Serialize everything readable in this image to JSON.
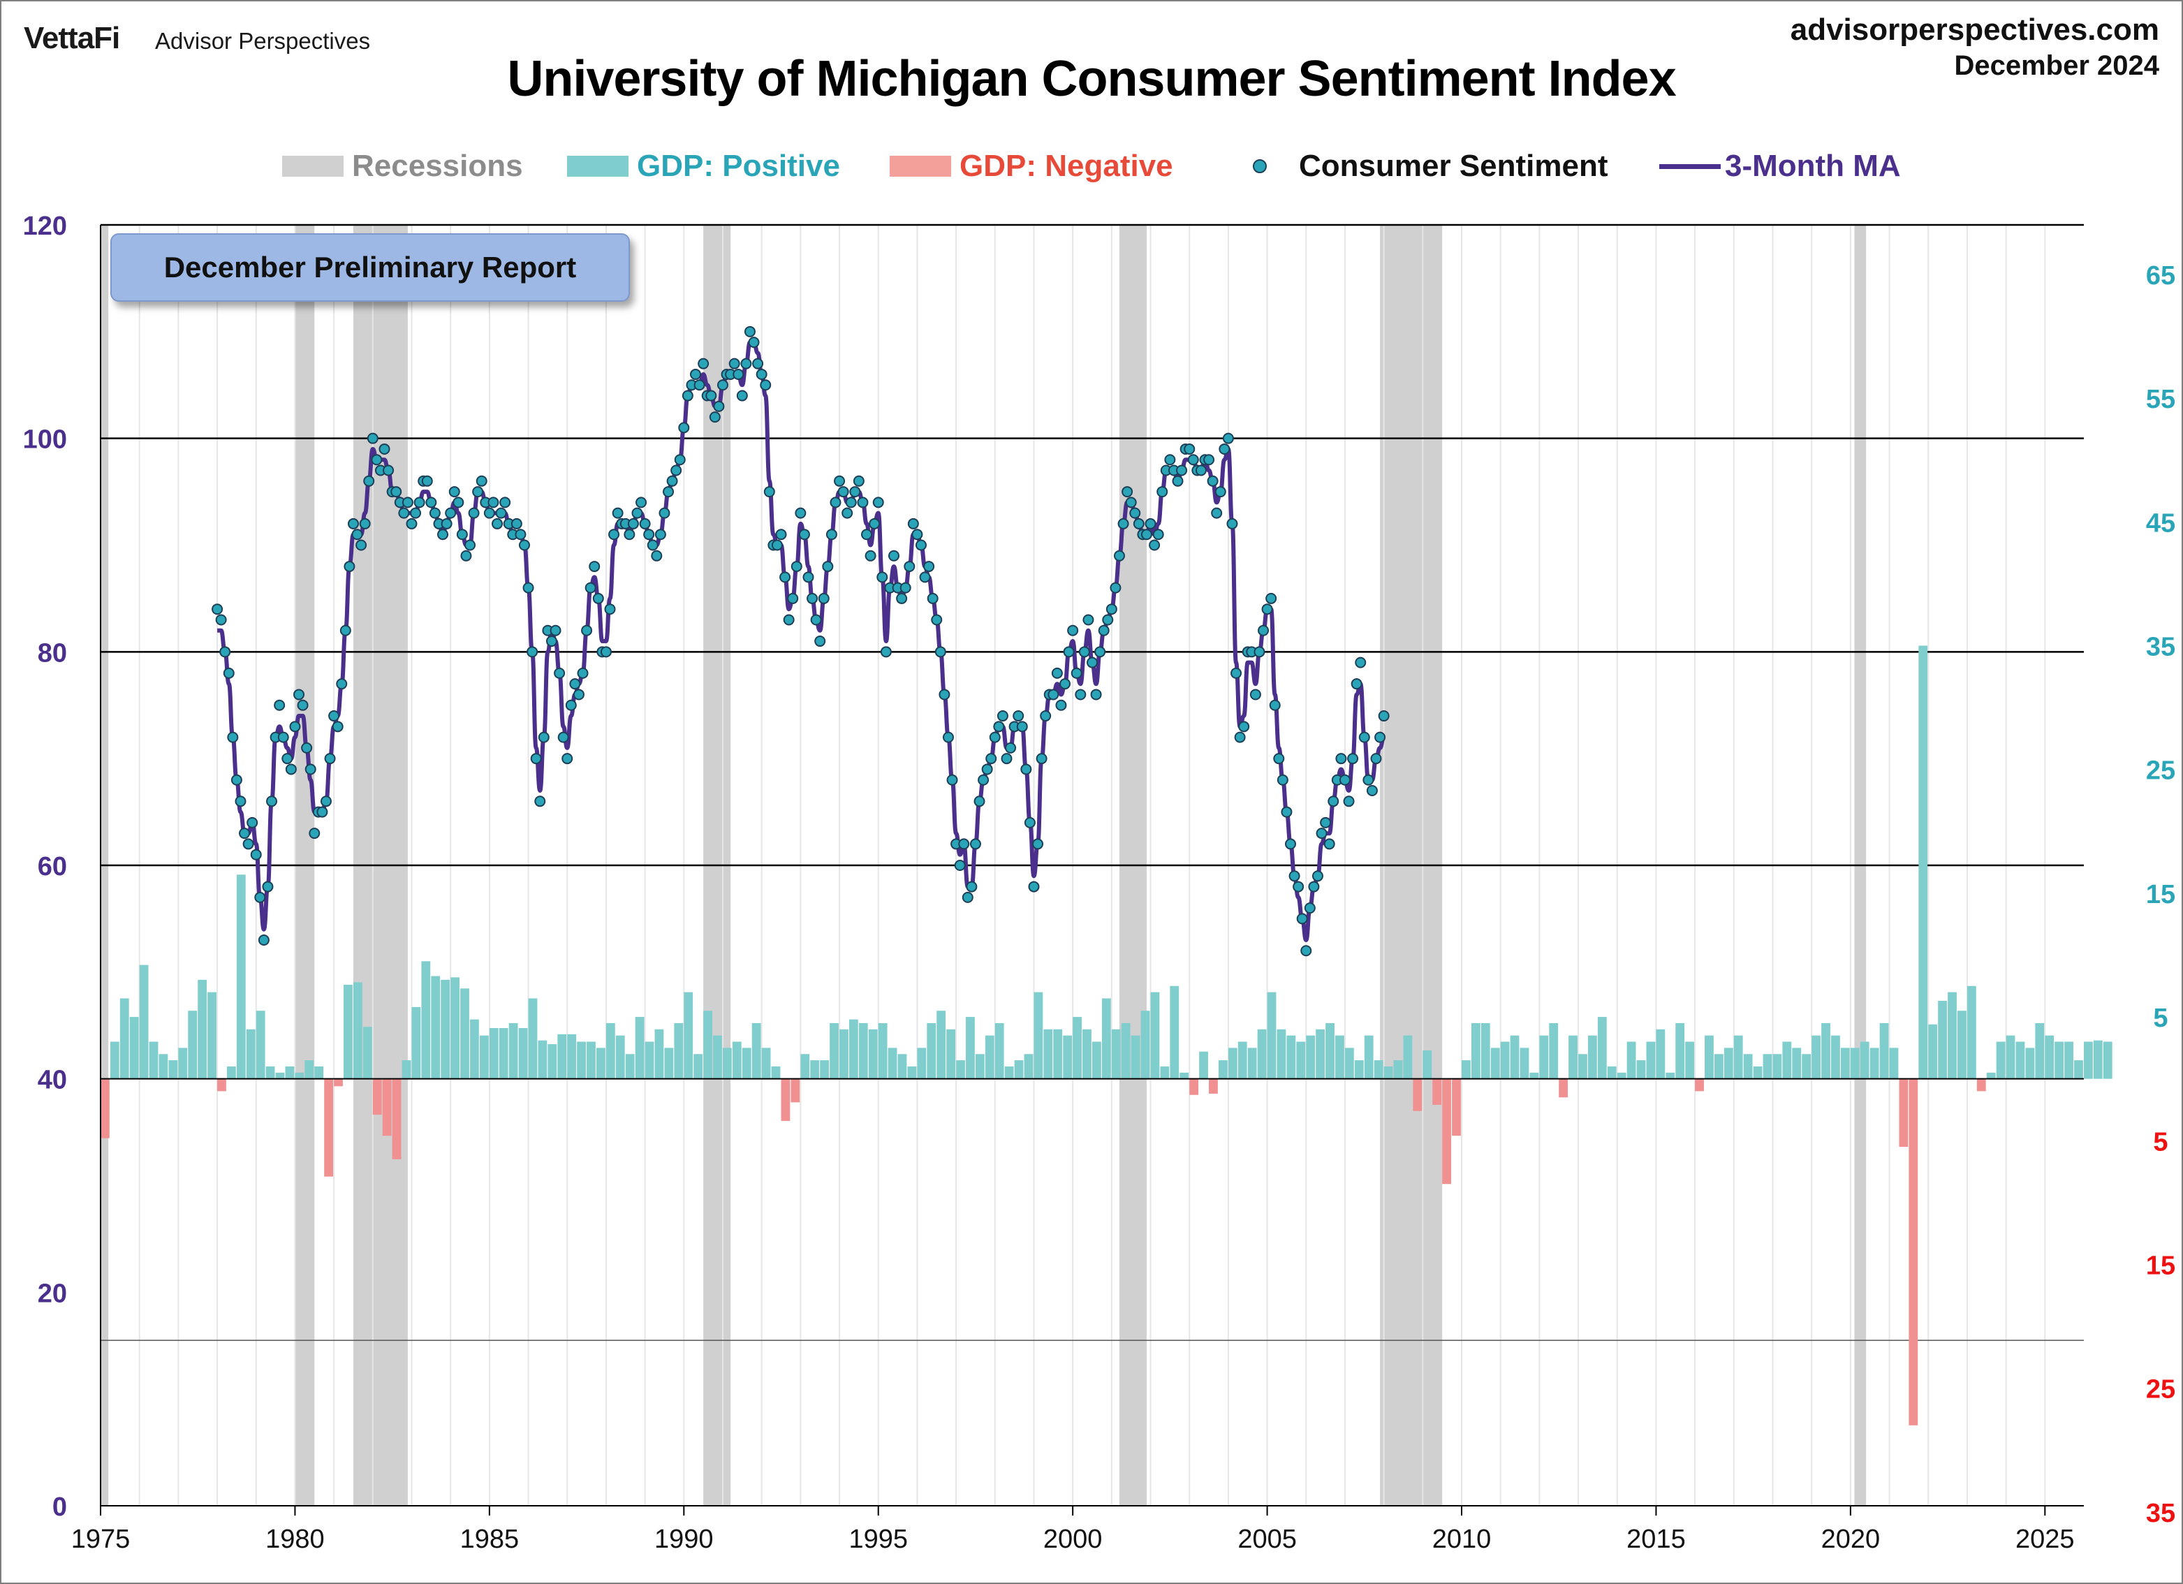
{
  "header": {
    "brand_left": "VettaFi",
    "brand_sub": "Advisor Perspectives",
    "site": "advisorperspectives.com",
    "date": "December 2024",
    "title": "University of Michigan Consumer Sentiment Index"
  },
  "legend": {
    "recessions": "Recessions",
    "gdp_positive": "GDP: Positive",
    "gdp_negative": "GDP: Negative",
    "sentiment": "Consumer Sentiment",
    "ma": "3-Month MA"
  },
  "annotation": "December Preliminary Report",
  "colors": {
    "recession": "#d0d0d0",
    "gdp_positive": "#7fcdcd",
    "gdp_negative": "#f09090",
    "dot_fill": "#2aa5b8",
    "dot_stroke": "#1d3f58",
    "ma_line": "#4b2f8d",
    "left_axis": "#4b2f8d",
    "right_axis_pos": "#2aa5b8",
    "right_axis_neg": "#ee1111"
  },
  "chart_data": {
    "type": "line",
    "x_axis": {
      "ticks": [
        1975,
        1980,
        1985,
        1990,
        1995,
        2000,
        2005,
        2010,
        2015,
        2020,
        2025
      ],
      "range": [
        1975,
        2026
      ]
    },
    "y_left": {
      "ticks": [
        0,
        20,
        40,
        60,
        80,
        100,
        120
      ],
      "range": [
        0,
        120
      ],
      "gridlines": [
        60,
        80,
        100,
        120
      ]
    },
    "y_right": {
      "ticks": [
        {
          "label": "65",
          "value": 65,
          "sign": "pos"
        },
        {
          "label": "55",
          "value": 55,
          "sign": "pos"
        },
        {
          "label": "45",
          "value": 45,
          "sign": "pos"
        },
        {
          "label": "35",
          "value": 35,
          "sign": "pos"
        },
        {
          "label": "25",
          "value": 25,
          "sign": "pos"
        },
        {
          "label": "15",
          "value": 15,
          "sign": "pos"
        },
        {
          "label": "5",
          "value": 5,
          "sign": "pos"
        },
        {
          "label": "5",
          "value": -5,
          "sign": "neg"
        },
        {
          "label": "15",
          "value": -15,
          "sign": "neg"
        },
        {
          "label": "25",
          "value": -25,
          "sign": "neg"
        },
        {
          "label": "35",
          "value": -35,
          "sign": "neg"
        }
      ],
      "range": [
        -35,
        70
      ]
    },
    "recessions": [
      [
        1975.0,
        1975.2
      ],
      [
        1980.0,
        1980.5
      ],
      [
        1981.5,
        1982.9
      ],
      [
        1990.5,
        1991.2
      ],
      [
        2001.2,
        2001.9
      ],
      [
        2007.9,
        2009.5
      ],
      [
        2020.1,
        2020.4
      ]
    ],
    "series": [
      {
        "name": "Consumer Sentiment",
        "kind": "points",
        "x_start": 1978.0,
        "step": 0.1,
        "values": [
          84.0,
          83.0,
          80.0,
          78.0,
          72.0,
          68.0,
          66.0,
          63.0,
          62.0,
          64.0,
          61.0,
          57.0,
          53.0,
          58.0,
          66.0,
          72.0,
          75.0,
          72.0,
          70.0,
          69.0,
          73.0,
          76.0,
          75.0,
          71.0,
          69.0,
          63.0,
          65.0,
          65.0,
          66.0,
          70.0,
          74.0,
          73.0,
          77.0,
          82.0,
          88.0,
          92.0,
          91.0,
          90.0,
          92.0,
          96.0,
          100.0,
          98.0,
          97.0,
          99.0,
          97.0,
          95.0,
          95.0,
          94.0,
          93.0,
          94.0,
          92.0,
          93.0,
          94.0,
          96.0,
          96.0,
          94.0,
          93.0,
          92.0,
          91.0,
          92.0,
          93.0,
          95.0,
          94.0,
          91.0,
          89.0,
          90.0,
          93.0,
          95.0,
          96.0,
          94.0,
          93.0,
          94.0,
          92.0,
          93.0,
          94.0,
          92.0,
          91.0,
          92.0,
          91.0,
          90.0,
          86.0,
          80.0,
          70.0,
          66.0,
          72.0,
          82.0,
          81.0,
          82.0,
          78.0,
          72.0,
          70.0,
          75.0,
          77.0,
          76.0,
          78.0,
          82.0,
          86.0,
          88.0,
          85.0,
          80.0,
          80.0,
          84.0,
          91.0,
          93.0,
          92.0,
          92.0,
          91.0,
          92.0,
          93.0,
          94.0,
          92.0,
          91.0,
          90.0,
          89.0,
          91.0,
          93.0,
          95.0,
          96.0,
          97.0,
          98.0,
          101.0,
          104.0,
          105.0,
          106.0,
          105.0,
          107.0,
          104.0,
          104.0,
          102.0,
          103.0,
          105.0,
          106.0,
          106.0,
          107.0,
          106.0,
          104.0,
          107.0,
          110.0,
          109.0,
          107.0,
          106.0,
          105.0,
          95.0,
          90.0,
          90.0,
          91.0,
          87.0,
          83.0,
          85.0,
          88.0,
          93.0,
          91.0,
          87.0,
          85.0,
          83.0,
          81.0,
          85.0,
          88.0,
          91.0,
          94.0,
          96.0,
          95.0,
          93.0,
          94.0,
          95.0,
          96.0,
          94.0,
          91.0,
          89.0,
          92.0,
          94.0,
          87.0,
          80.0,
          86.0,
          89.0,
          86.0,
          85.0,
          86.0,
          88.0,
          92.0,
          91.0,
          90.0,
          87.0,
          88.0,
          85.0,
          83.0,
          80.0,
          76.0,
          72.0,
          68.0,
          62.0,
          60.0,
          62.0,
          57.0,
          58.0,
          62.0,
          66.0,
          68.0,
          69.0,
          70.0,
          72.0,
          73.0,
          74.0,
          70.0,
          71.0,
          73.0,
          74.0,
          73.0,
          69.0,
          64.0,
          58.0,
          62.0,
          70.0,
          74.0,
          76.0,
          76.0,
          78.0,
          75.0,
          77.0,
          80.0,
          82.0,
          78.0,
          76.0,
          80.0,
          83.0,
          79.0,
          76.0,
          80.0,
          82.0,
          83.0,
          84.0,
          86.0,
          89.0,
          92.0,
          95.0,
          94.0,
          93.0,
          92.0,
          91.0,
          91.0,
          92.0,
          90.0,
          91.0,
          95.0,
          97.0,
          98.0,
          97.0,
          96.0,
          97.0,
          99.0,
          99.0,
          98.0,
          97.0,
          97.0,
          98.0,
          98.0,
          96.0,
          93.0,
          95.0,
          99.0,
          100.0,
          92.0,
          78.0,
          72.0,
          73.0,
          80.0,
          80.0,
          76.0,
          80.0,
          82.0,
          84.0,
          85.0,
          75.0,
          70.0,
          68.0,
          65.0,
          62.0,
          59.0,
          58.0,
          55.0,
          52.0,
          56.0,
          58.0,
          59.0,
          63.0,
          64.0,
          62.0,
          66.0,
          68.0,
          70.0,
          68.0,
          66.0,
          70.0,
          77.0,
          79.0,
          72.0,
          68.0,
          67.0,
          70.0,
          72.0,
          74.0
        ]
      },
      {
        "name": "3-Month MA",
        "kind": "line",
        "x_start": 1978.0,
        "step": 0.1,
        "values": [
          82.0,
          82.0,
          80.0,
          77.0,
          72.0,
          68.0,
          65.0,
          63.0,
          63.0,
          64.0,
          62.0,
          57.0,
          54.0,
          58.0,
          66.0,
          72.0,
          73.0,
          72.0,
          71.0,
          70.0,
          72.0,
          74.0,
          74.0,
          71.0,
          68.0,
          65.0,
          65.0,
          65.0,
          66.0,
          70.0,
          73.0,
          74.0,
          77.0,
          82.0,
          88.0,
          91.0,
          91.0,
          91.0,
          93.0,
          96.0,
          99.0,
          98.0,
          98.0,
          98.0,
          97.0,
          95.0,
          95.0,
          94.0,
          93.0,
          93.0,
          93.0,
          93.0,
          94.0,
          95.0,
          95.0,
          94.0,
          93.0,
          92.0,
          91.0,
          92.0,
          93.0,
          94.0,
          93.0,
          91.0,
          90.0,
          90.0,
          93.0,
          95.0,
          95.0,
          94.0,
          93.0,
          93.0,
          93.0,
          93.0,
          93.0,
          92.0,
          91.0,
          91.0,
          91.0,
          90.0,
          86.0,
          80.0,
          71.0,
          67.0,
          72.0,
          80.0,
          82.0,
          81.0,
          78.0,
          73.0,
          71.0,
          74.0,
          76.0,
          77.0,
          78.0,
          82.0,
          86.0,
          87.0,
          85.0,
          81.0,
          81.0,
          85.0,
          90.0,
          92.0,
          92.0,
          92.0,
          91.0,
          92.0,
          93.0,
          93.0,
          92.0,
          91.0,
          90.0,
          90.0,
          91.0,
          93.0,
          95.0,
          96.0,
          97.0,
          98.0,
          101.0,
          104.0,
          105.0,
          105.0,
          105.0,
          106.0,
          105.0,
          104.0,
          103.0,
          103.0,
          105.0,
          106.0,
          106.0,
          106.0,
          106.0,
          105.0,
          107.0,
          109.0,
          109.0,
          108.0,
          106.0,
          104.0,
          96.0,
          91.0,
          90.0,
          90.0,
          87.0,
          84.0,
          85.0,
          88.0,
          92.0,
          91.0,
          88.0,
          85.0,
          83.0,
          82.0,
          85.0,
          88.0,
          91.0,
          94.0,
          95.0,
          95.0,
          94.0,
          94.0,
          95.0,
          95.0,
          94.0,
          92.0,
          90.0,
          92.0,
          93.0,
          87.0,
          81.0,
          86.0,
          88.0,
          86.0,
          85.0,
          86.0,
          88.0,
          91.0,
          91.0,
          90.0,
          88.0,
          87.0,
          85.0,
          83.0,
          80.0,
          76.0,
          72.0,
          68.0,
          63.0,
          61.0,
          62.0,
          58.0,
          58.0,
          62.0,
          66.0,
          68.0,
          69.0,
          70.0,
          72.0,
          73.0,
          73.0,
          71.0,
          71.0,
          73.0,
          73.0,
          73.0,
          69.0,
          64.0,
          59.0,
          62.0,
          70.0,
          74.0,
          76.0,
          76.0,
          77.0,
          76.0,
          77.0,
          80.0,
          81.0,
          78.0,
          77.0,
          80.0,
          82.0,
          79.0,
          77.0,
          80.0,
          82.0,
          83.0,
          84.0,
          86.0,
          89.0,
          92.0,
          94.0,
          94.0,
          93.0,
          92.0,
          91.0,
          91.0,
          92.0,
          91.0,
          92.0,
          95.0,
          97.0,
          97.0,
          97.0,
          96.0,
          97.0,
          98.0,
          98.0,
          98.0,
          97.0,
          97.0,
          98.0,
          97.0,
          96.0,
          94.0,
          95.0,
          98.0,
          99.0,
          92.0,
          79.0,
          73.0,
          74.0,
          79.0,
          79.0,
          77.0,
          80.0,
          82.0,
          84.0,
          84.0,
          76.0,
          71.0,
          68.0,
          65.0,
          62.0,
          59.0,
          57.0,
          55.0,
          53.0,
          56.0,
          58.0,
          59.0,
          62.0,
          63.0,
          63.0,
          66.0,
          68.0,
          69.0,
          68.0,
          67.0,
          70.0,
          76.0,
          77.0,
          72.0,
          68.0,
          68.0,
          70.0,
          71.0,
          72.0
        ]
      },
      {
        "name": "GDP",
        "kind": "bars",
        "x_start": 1975.0,
        "step": 0.25,
        "values": [
          -4.8,
          3.0,
          6.5,
          5.0,
          9.2,
          3.0,
          2.0,
          1.5,
          2.5,
          5.5,
          8.0,
          7.0,
          -1.0,
          1.0,
          16.5,
          4.0,
          5.5,
          1.0,
          0.5,
          1.0,
          0.5,
          1.5,
          1.0,
          -7.9,
          -0.6,
          7.6,
          7.8,
          4.2,
          -2.9,
          -4.6,
          -6.5,
          1.5,
          5.8,
          9.5,
          8.3,
          8.0,
          8.2,
          7.3,
          4.8,
          3.5,
          4.1,
          4.1,
          4.5,
          4.1,
          6.5,
          3.1,
          2.8,
          3.6,
          3.6,
          3.0,
          3.0,
          2.5,
          4.5,
          3.5,
          2.0,
          5.0,
          3.0,
          4.0,
          2.5,
          4.5,
          7.0,
          2.0,
          5.5,
          3.5,
          2.5,
          3.0,
          2.5,
          4.5,
          2.5,
          1.0,
          -3.4,
          -1.9,
          2.0,
          1.5,
          1.5,
          4.5,
          4.0,
          4.8,
          4.5,
          4.0,
          4.5,
          2.5,
          2.0,
          1.0,
          2.5,
          4.5,
          5.5,
          4.0,
          1.5,
          5.0,
          2.0,
          3.5,
          4.5,
          1.0,
          1.5,
          2.0,
          7.0,
          4.0,
          4.0,
          3.5,
          5.0,
          4.0,
          3.0,
          6.5,
          4.0,
          4.5,
          3.5,
          5.5,
          7.0,
          1.0,
          7.5,
          0.5,
          -1.3,
          2.2,
          -1.2,
          1.5,
          2.5,
          3.0,
          2.5,
          4.0,
          7.0,
          4.0,
          3.5,
          3.0,
          3.5,
          4.0,
          4.5,
          3.5,
          2.5,
          1.5,
          3.5,
          1.5,
          1.0,
          1.5,
          3.5,
          -2.6,
          2.3,
          -2.1,
          -8.5,
          -4.6,
          1.5,
          4.5,
          4.5,
          2.5,
          3.0,
          3.5,
          2.5,
          0.5,
          3.5,
          4.5,
          -1.5,
          3.5,
          2.0,
          3.5,
          5.0,
          1.0,
          0.5,
          3.0,
          1.5,
          3.0,
          4.0,
          0.5,
          4.5,
          3.0,
          -1.0,
          3.5,
          2.0,
          2.5,
          3.5,
          2.0,
          1.0,
          2.0,
          2.0,
          3.0,
          2.5,
          2.0,
          3.5,
          4.5,
          3.5,
          2.5,
          2.5,
          3.0,
          2.5,
          4.5,
          2.5,
          -5.5,
          -28.0,
          35.0,
          4.4,
          6.3,
          7.0,
          5.5,
          7.5,
          -1.0,
          0.5,
          3.0,
          3.5,
          3.0,
          2.5,
          4.5,
          3.5,
          3.0,
          3.0,
          1.5,
          3.0,
          3.1,
          3.0
        ]
      }
    ]
  }
}
